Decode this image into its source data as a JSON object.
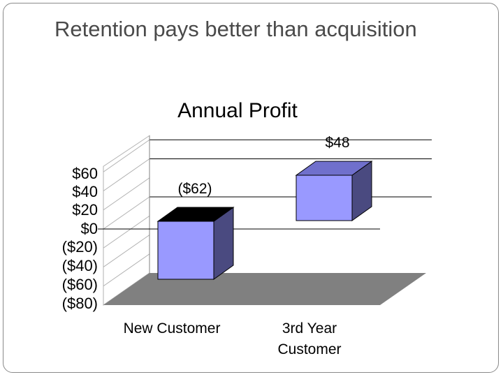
{
  "slide": {
    "title": "Retention pays better than acquisition"
  },
  "colors": {
    "bar_front": "#9999ff",
    "bar_side": "#4a4a80",
    "bar_top": "#7070cc",
    "negative_bar_top": "#000000",
    "floor": "#808080",
    "grid": "#000000",
    "wall_gridlines": "#b0b0b0"
  },
  "chart_data": {
    "type": "bar",
    "title": "Annual Profit",
    "categories": [
      "New Customer",
      "3rd Year Customer"
    ],
    "category_labels": [
      [
        "New Customer"
      ],
      [
        "3rd Year",
        "Customer"
      ]
    ],
    "values": [
      -62,
      48
    ],
    "data_labels": [
      "($62)",
      "$48"
    ],
    "y_ticks": [
      "$60",
      "$40",
      "$20",
      "$0",
      "($20)",
      "($40)",
      "($60)",
      "($80)"
    ],
    "ylim": [
      -80,
      60
    ],
    "xlabel": "",
    "ylabel": "",
    "three_d": true,
    "grid": true,
    "legend": "none"
  }
}
